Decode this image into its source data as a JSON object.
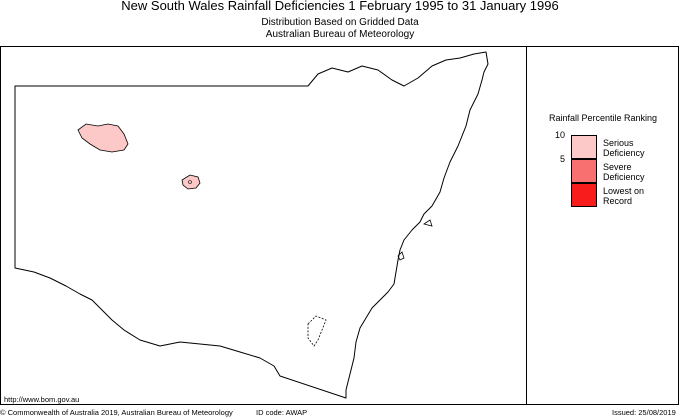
{
  "title": "New South Wales Rainfall Deficiencies   1 February 1995 to 31 January 1996",
  "subtitle1": "Distribution Based on Gridded Data",
  "subtitle2": "Australian Bureau of Meteorology",
  "legend": {
    "title": "Rainfall Percentile Ranking",
    "ticks": [
      "10",
      "5"
    ],
    "items": [
      {
        "label_line1": "Serious",
        "label_line2": "Deficiency",
        "color": "#fcc8c8"
      },
      {
        "label_line1": "Severe",
        "label_line2": "Deficiency",
        "color": "#f87070"
      },
      {
        "label_line1": "Lowest on",
        "label_line2": "Record",
        "color": "#f81c1c"
      }
    ]
  },
  "footer": {
    "url": "http://www.bom.gov.au",
    "copyright": "© Commonwealth of Australia 2019, Australian Bureau of Meteorology",
    "id_code": "ID code: AWAP",
    "issued": "Issued: 25/08/2019"
  },
  "colors": {
    "deficiency_area": "#fcc8c8",
    "border": "#000000"
  }
}
